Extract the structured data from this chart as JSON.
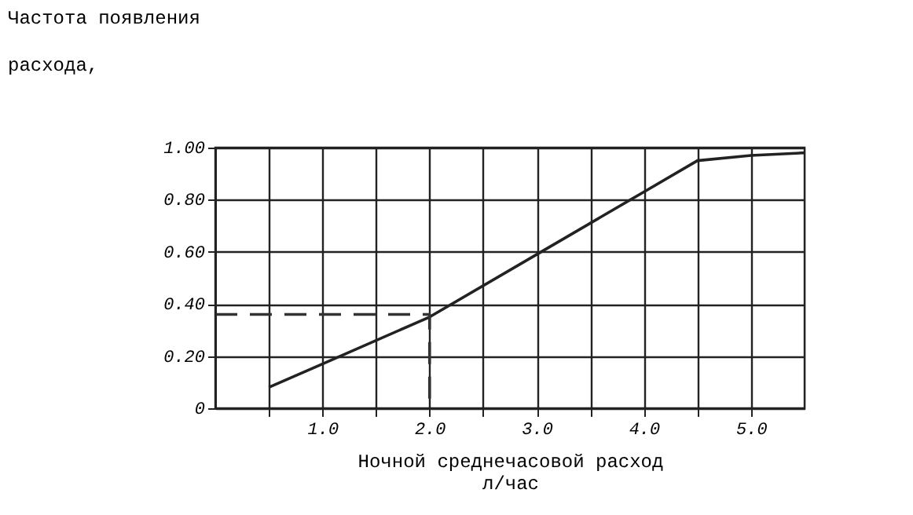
{
  "chart_data": {
    "type": "line",
    "ylabel": "Частота появления\nрасхода,",
    "xlabel": "Ночной среднечасовой расход\nл/час",
    "series": [
      {
        "x": [
          0.5,
          1.0,
          2.0,
          3.0,
          4.0,
          4.5,
          5.0,
          5.5
        ],
        "values": [
          0.08,
          0.17,
          0.35,
          0.59,
          0.83,
          0.95,
          0.97,
          0.98
        ],
        "color": "#222222",
        "line_style": "solid"
      },
      {
        "type": "line",
        "x": [
          0,
          2.0,
          2.0
        ],
        "values": [
          0.36,
          0.36,
          0
        ],
        "color": "#333333",
        "line_style": "dashed"
      }
    ],
    "xlim": [
      0,
      5.5
    ],
    "xticks": [
      {
        "value": 0.5,
        "label": null
      },
      {
        "value": 1.0,
        "label": "1.0"
      },
      {
        "value": 1.5,
        "label": null
      },
      {
        "value": 2.0,
        "label": "2.0"
      },
      {
        "value": 2.5,
        "label": null
      },
      {
        "value": 3.0,
        "label": "3.0"
      },
      {
        "value": 3.5,
        "label": null
      },
      {
        "value": 4.0,
        "label": "4.0"
      },
      {
        "value": 4.5,
        "label": null
      },
      {
        "value": 5.0,
        "label": "5.0"
      }
    ],
    "ylim": [
      0,
      1.0
    ],
    "yticks": [
      0,
      {
        "value": 0.2,
        "label": "0.20"
      },
      {
        "value": 0.4,
        "label": "0.40"
      },
      {
        "value": 0.6,
        "label": "0.60"
      },
      {
        "value": 0.8,
        "label": "0.80"
      },
      {
        "value": 1.0,
        "label": "1.00"
      }
    ],
    "grid": true,
    "marker": "none"
  }
}
